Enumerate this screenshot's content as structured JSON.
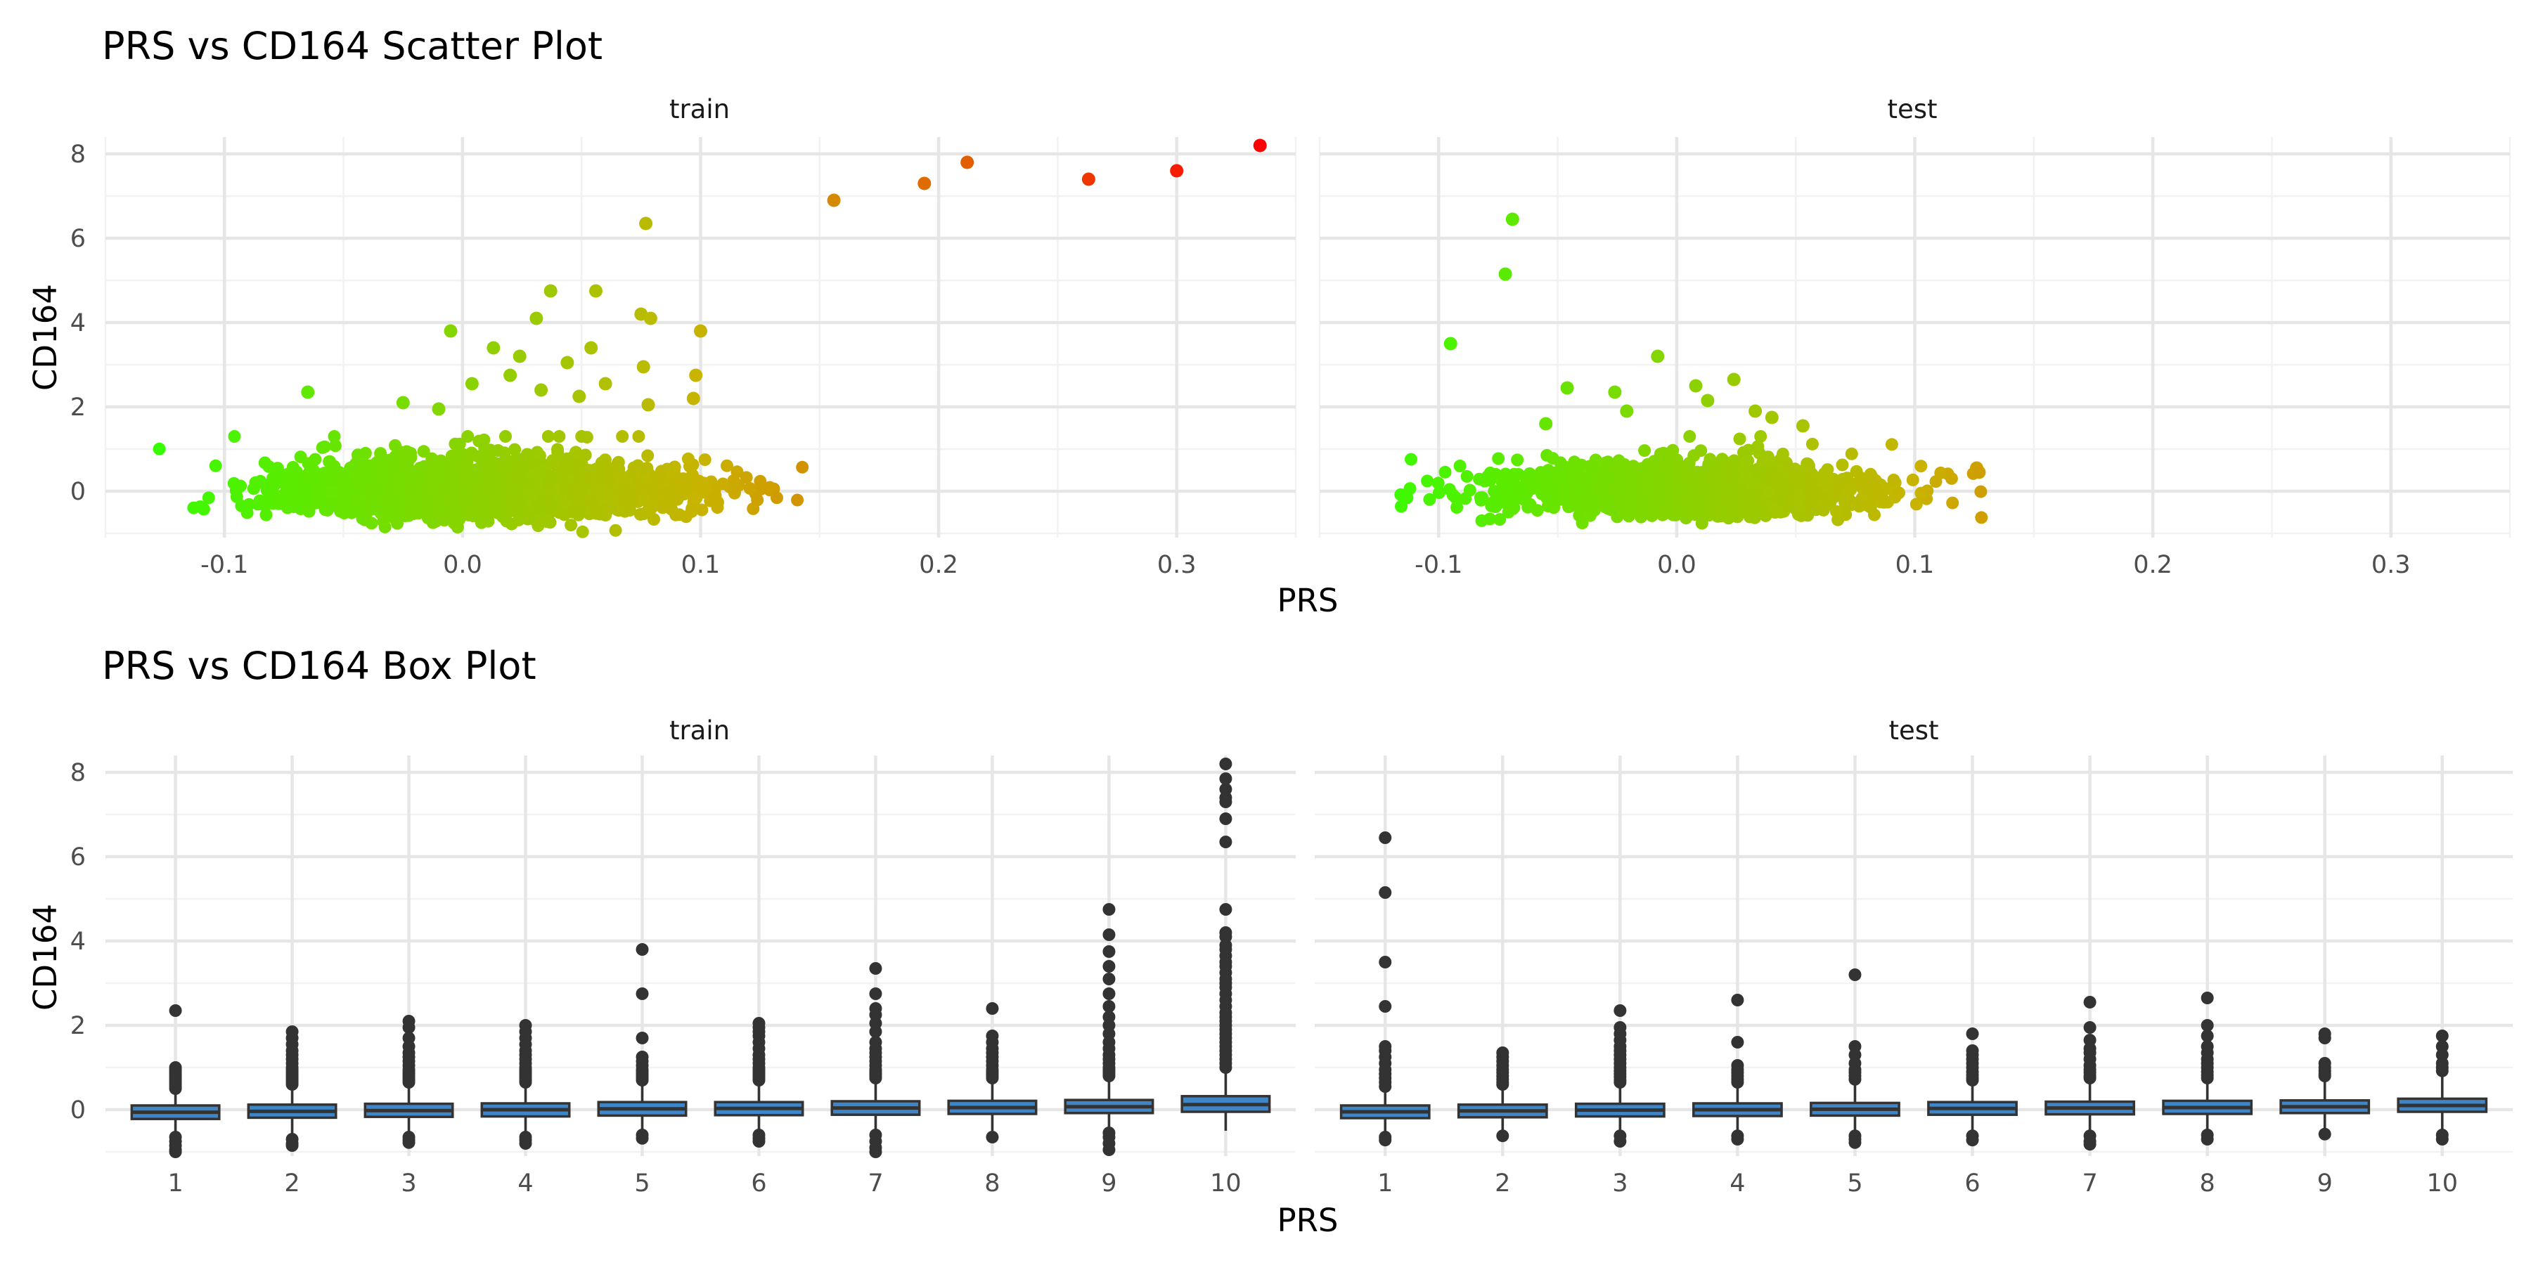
{
  "chart_data": [
    {
      "type": "scatter",
      "title": "PRS vs CD164 Scatter Plot",
      "xlabel": "PRS",
      "ylabel": "CD164",
      "facets": [
        "train",
        "test"
      ],
      "xlim": [
        -0.15,
        0.35
      ],
      "ylim": [
        -1.1,
        8.4
      ],
      "x_ticks": [
        -0.1,
        0.0,
        0.1,
        0.2,
        0.3
      ],
      "x_tick_labels": [
        "-0.1",
        "0.0",
        "0.1",
        "0.2",
        "0.3"
      ],
      "y_ticks": [
        0,
        2,
        4,
        6,
        8
      ],
      "y_tick_labels": [
        "0",
        "2",
        "4",
        "6",
        "8"
      ],
      "grid": true,
      "legend": "none",
      "color_scale": {
        "low": "#33ff00",
        "mid": "#c8b400",
        "high": "#ff0000",
        "maps": "PRS"
      },
      "series": [
        {
          "facet": "train",
          "bulk": {
            "n": 2600,
            "x_mean": 0.01,
            "x_sd": 0.042,
            "x_min": -0.135,
            "x_max": 0.15,
            "y_center": 0.0,
            "y_sd": 0.28,
            "y_min": -1.0
          },
          "outliers": [
            {
              "x": 0.335,
              "y": 8.2
            },
            {
              "x": 0.3,
              "y": 7.6
            },
            {
              "x": 0.263,
              "y": 7.4
            },
            {
              "x": 0.212,
              "y": 7.8
            },
            {
              "x": 0.194,
              "y": 7.3
            },
            {
              "x": 0.156,
              "y": 6.9
            },
            {
              "x": 0.077,
              "y": 6.35
            },
            {
              "x": 0.037,
              "y": 4.75
            },
            {
              "x": 0.056,
              "y": 4.75
            },
            {
              "x": 0.075,
              "y": 4.2
            },
            {
              "x": 0.079,
              "y": 4.1
            },
            {
              "x": 0.031,
              "y": 4.1
            },
            {
              "x": 0.1,
              "y": 3.8
            },
            {
              "x": -0.005,
              "y": 3.8
            },
            {
              "x": 0.054,
              "y": 3.4
            },
            {
              "x": 0.013,
              "y": 3.4
            },
            {
              "x": 0.044,
              "y": 3.05
            },
            {
              "x": 0.076,
              "y": 2.95
            },
            {
              "x": 0.098,
              "y": 2.75
            },
            {
              "x": 0.024,
              "y": 3.2
            },
            {
              "x": 0.06,
              "y": 2.55
            },
            {
              "x": -0.065,
              "y": 2.35
            },
            {
              "x": -0.025,
              "y": 2.1
            },
            {
              "x": 0.004,
              "y": 2.55
            },
            {
              "x": 0.02,
              "y": 2.75
            },
            {
              "x": 0.033,
              "y": 2.4
            },
            {
              "x": 0.049,
              "y": 2.25
            },
            {
              "x": 0.078,
              "y": 2.05
            },
            {
              "x": -0.01,
              "y": 1.95
            },
            {
              "x": 0.097,
              "y": 2.2
            }
          ]
        },
        {
          "facet": "test",
          "bulk": {
            "n": 1500,
            "x_mean": 0.005,
            "x_sd": 0.04,
            "x_min": -0.12,
            "x_max": 0.128,
            "y_center": 0.0,
            "y_sd": 0.27,
            "y_min": -0.9
          },
          "outliers": [
            {
              "x": -0.069,
              "y": 6.45
            },
            {
              "x": -0.072,
              "y": 5.15
            },
            {
              "x": -0.095,
              "y": 3.5
            },
            {
              "x": -0.008,
              "y": 3.2
            },
            {
              "x": -0.046,
              "y": 2.45
            },
            {
              "x": 0.024,
              "y": 2.65
            },
            {
              "x": 0.008,
              "y": 2.5
            },
            {
              "x": -0.026,
              "y": 2.35
            },
            {
              "x": 0.013,
              "y": 2.15
            },
            {
              "x": -0.021,
              "y": 1.9
            },
            {
              "x": 0.033,
              "y": 1.9
            },
            {
              "x": 0.04,
              "y": 1.75
            },
            {
              "x": -0.055,
              "y": 1.6
            },
            {
              "x": 0.053,
              "y": 1.55
            },
            {
              "x": 0.126,
              "y": 0.55
            },
            {
              "x": 0.127,
              "y": 0.45
            }
          ]
        }
      ]
    },
    {
      "type": "box",
      "title": "PRS vs CD164 Box Plot",
      "xlabel": "PRS",
      "ylabel": "CD164",
      "facets": [
        "train",
        "test"
      ],
      "categories": [
        "1",
        "2",
        "3",
        "4",
        "5",
        "6",
        "7",
        "8",
        "9",
        "10"
      ],
      "ylim": [
        -1.1,
        8.4
      ],
      "y_ticks": [
        0,
        2,
        4,
        6,
        8
      ],
      "y_tick_labels": [
        "0",
        "2",
        "4",
        "6",
        "8"
      ],
      "grid": true,
      "legend": "none",
      "box_fill": "#3f86c8",
      "series": [
        {
          "facet": "train",
          "boxes": [
            {
              "q1": -0.22,
              "median": -0.06,
              "q3": 0.1,
              "whisker_low": -0.6,
              "whisker_high": 0.45,
              "outliers": [
                2.35,
                1.0,
                0.95,
                0.9,
                0.85,
                0.8,
                0.75,
                0.7,
                0.65,
                0.6,
                0.55,
                0.5,
                -0.65,
                -0.75,
                -0.85,
                -0.95,
                -1.0
              ]
            },
            {
              "q1": -0.19,
              "median": -0.04,
              "q3": 0.12,
              "whisker_low": -0.6,
              "whisker_high": 0.55,
              "outliers": [
                1.85,
                1.7,
                1.55,
                1.4,
                1.3,
                1.2,
                1.1,
                1.0,
                0.95,
                0.9,
                0.85,
                0.8,
                0.75,
                0.7,
                0.65,
                0.6,
                -0.7,
                -0.8,
                -0.85
              ]
            },
            {
              "q1": -0.17,
              "median": -0.02,
              "q3": 0.14,
              "whisker_low": -0.6,
              "whisker_high": 0.6,
              "outliers": [
                2.1,
                1.95,
                1.7,
                1.5,
                1.35,
                1.25,
                1.15,
                1.05,
                0.95,
                0.9,
                0.85,
                0.8,
                0.75,
                0.7,
                0.65,
                -0.65,
                -0.72,
                -0.78
              ]
            },
            {
              "q1": -0.16,
              "median": 0.0,
              "q3": 0.15,
              "whisker_low": -0.6,
              "whisker_high": 0.6,
              "outliers": [
                2.0,
                1.85,
                1.7,
                1.55,
                1.4,
                1.3,
                1.2,
                1.1,
                1.0,
                0.95,
                0.9,
                0.85,
                0.8,
                0.75,
                0.7,
                0.65,
                -0.65,
                -0.72,
                -0.8
              ]
            },
            {
              "q1": -0.14,
              "median": 0.02,
              "q3": 0.18,
              "whisker_low": -0.55,
              "whisker_high": 0.65,
              "outliers": [
                3.8,
                2.75,
                1.7,
                1.25,
                1.15,
                1.05,
                0.95,
                0.9,
                0.85,
                0.8,
                0.75,
                0.7,
                -0.6,
                -0.68
              ]
            },
            {
              "q1": -0.13,
              "median": 0.03,
              "q3": 0.18,
              "whisker_low": -0.55,
              "whisker_high": 0.65,
              "outliers": [
                2.05,
                1.95,
                1.85,
                1.75,
                1.6,
                1.45,
                1.3,
                1.2,
                1.1,
                1.0,
                0.95,
                0.9,
                0.85,
                0.8,
                0.75,
                0.7,
                -0.6,
                -0.68,
                -0.75
              ]
            },
            {
              "q1": -0.12,
              "median": 0.04,
              "q3": 0.2,
              "whisker_low": -0.55,
              "whisker_high": 0.7,
              "outliers": [
                3.35,
                2.75,
                2.4,
                2.25,
                2.05,
                1.85,
                1.6,
                1.45,
                1.35,
                1.25,
                1.15,
                1.05,
                0.95,
                0.9,
                0.85,
                0.8,
                0.75,
                -0.6,
                -0.75,
                -0.9,
                -1.0
              ]
            },
            {
              "q1": -0.1,
              "median": 0.05,
              "q3": 0.21,
              "whisker_low": -0.5,
              "whisker_high": 0.7,
              "outliers": [
                2.4,
                1.75,
                1.6,
                1.45,
                1.35,
                1.25,
                1.15,
                1.05,
                0.95,
                0.9,
                0.85,
                0.8,
                0.75,
                -0.65
              ]
            },
            {
              "q1": -0.08,
              "median": 0.07,
              "q3": 0.23,
              "whisker_low": -0.5,
              "whisker_high": 0.75,
              "outliers": [
                4.75,
                4.15,
                3.75,
                3.4,
                3.1,
                2.75,
                2.45,
                2.2,
                2.0,
                1.8,
                1.6,
                1.45,
                1.3,
                1.2,
                1.1,
                1.0,
                0.95,
                0.9,
                0.85,
                0.8,
                -0.55,
                -0.65,
                -0.8,
                -0.95
              ]
            },
            {
              "q1": -0.05,
              "median": 0.12,
              "q3": 0.32,
              "whisker_low": -0.5,
              "whisker_high": 0.9,
              "outliers": [
                8.2,
                7.85,
                7.6,
                7.4,
                7.3,
                6.9,
                6.35,
                4.75,
                4.2,
                4.1,
                3.9,
                3.8,
                3.65,
                3.5,
                3.4,
                3.25,
                3.1,
                3.0,
                2.9,
                2.75,
                2.6,
                2.45,
                2.3,
                2.2,
                2.1,
                2.0,
                1.9,
                1.8,
                1.7,
                1.6,
                1.5,
                1.4,
                1.3,
                1.2,
                1.1,
                1.0
              ]
            }
          ]
        },
        {
          "facet": "test",
          "boxes": [
            {
              "q1": -0.2,
              "median": -0.05,
              "q3": 0.1,
              "whisker_low": -0.6,
              "whisker_high": 0.5,
              "outliers": [
                6.45,
                5.15,
                3.5,
                2.45,
                1.5,
                1.4,
                1.25,
                1.1,
                0.95,
                0.85,
                0.75,
                0.65,
                0.55,
                -0.65,
                -0.72
              ]
            },
            {
              "q1": -0.18,
              "median": -0.03,
              "q3": 0.12,
              "whisker_low": -0.55,
              "whisker_high": 0.55,
              "outliers": [
                1.35,
                1.25,
                1.15,
                1.05,
                0.95,
                0.88,
                0.8,
                0.72,
                0.65,
                0.6,
                -0.62
              ]
            },
            {
              "q1": -0.16,
              "median": -0.01,
              "q3": 0.14,
              "whisker_low": -0.55,
              "whisker_high": 0.6,
              "outliers": [
                2.35,
                1.95,
                1.8,
                1.65,
                1.5,
                1.4,
                1.3,
                1.2,
                1.1,
                1.0,
                0.92,
                0.85,
                0.78,
                0.7,
                0.65,
                -0.62,
                -0.75
              ]
            },
            {
              "q1": -0.15,
              "median": 0.0,
              "q3": 0.15,
              "whisker_low": -0.55,
              "whisker_high": 0.6,
              "outliers": [
                2.6,
                1.6,
                1.05,
                0.95,
                0.88,
                0.8,
                0.72,
                0.65,
                -0.62,
                -0.7
              ]
            },
            {
              "q1": -0.14,
              "median": 0.01,
              "q3": 0.16,
              "whisker_low": -0.55,
              "whisker_high": 0.65,
              "outliers": [
                3.2,
                1.5,
                1.3,
                1.1,
                0.95,
                0.88,
                0.8,
                0.72,
                -0.62,
                -0.7,
                -0.78
              ]
            },
            {
              "q1": -0.12,
              "median": 0.03,
              "q3": 0.18,
              "whisker_low": -0.55,
              "whisker_high": 0.65,
              "outliers": [
                1.8,
                1.4,
                1.3,
                1.2,
                1.1,
                1.0,
                0.9,
                0.82,
                0.75,
                0.7,
                -0.62,
                -0.72
              ]
            },
            {
              "q1": -0.11,
              "median": 0.04,
              "q3": 0.19,
              "whisker_low": -0.55,
              "whisker_high": 0.7,
              "outliers": [
                2.55,
                1.95,
                1.65,
                1.45,
                1.35,
                1.2,
                1.05,
                0.95,
                0.88,
                0.8,
                0.75,
                -0.62,
                -0.75,
                -0.82
              ]
            },
            {
              "q1": -0.1,
              "median": 0.05,
              "q3": 0.21,
              "whisker_low": -0.5,
              "whisker_high": 0.7,
              "outliers": [
                2.65,
                2.0,
                1.75,
                1.5,
                1.35,
                1.2,
                1.1,
                1.0,
                0.9,
                0.82,
                0.75,
                -0.6,
                -0.7
              ]
            },
            {
              "q1": -0.08,
              "median": 0.07,
              "q3": 0.22,
              "whisker_low": -0.5,
              "whisker_high": 0.75,
              "outliers": [
                1.8,
                1.7,
                1.1,
                1.0,
                0.92,
                0.85,
                0.8,
                -0.58
              ]
            },
            {
              "q1": -0.05,
              "median": 0.1,
              "q3": 0.26,
              "whisker_low": -0.5,
              "whisker_high": 0.85,
              "outliers": [
                1.75,
                1.5,
                1.3,
                1.1,
                1.0,
                0.92,
                -0.6,
                -0.7
              ]
            }
          ]
        }
      ]
    }
  ]
}
